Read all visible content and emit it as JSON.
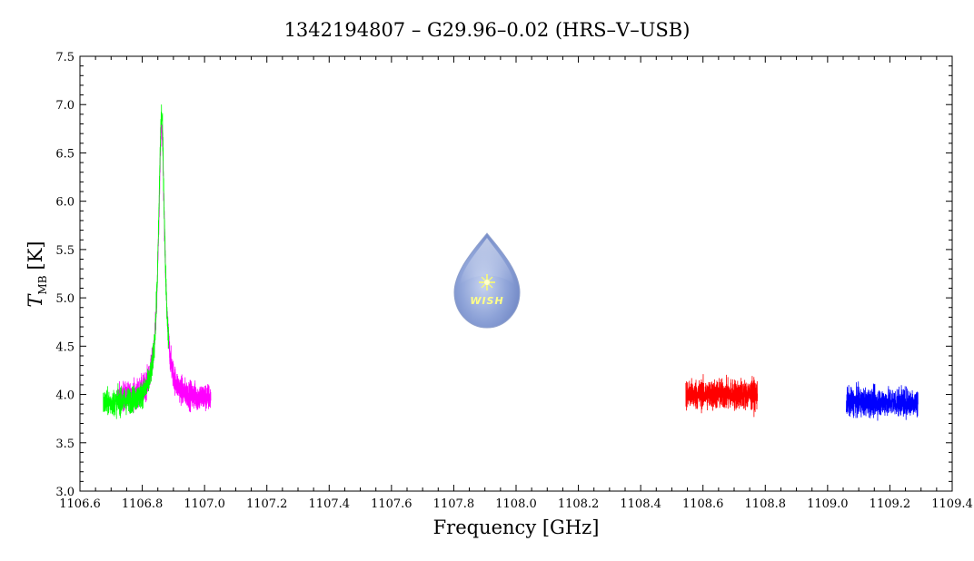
{
  "chart_data": {
    "type": "line",
    "title": "1342194807 – G29.96–0.02 (HRS–V–USB)",
    "xlabel": "Frequency [GHz]",
    "ylabel_main": "T",
    "ylabel_sub": "MB",
    "ylabel_unit": "[K]",
    "xlim": [
      1106.6,
      1109.4
    ],
    "ylim": [
      3.0,
      7.5
    ],
    "x_ticks": [
      "1106.6",
      "1106.8",
      "1107.0",
      "1107.2",
      "1107.4",
      "1107.6",
      "1107.8",
      "1108.0",
      "1108.2",
      "1108.4",
      "1108.6",
      "1108.8",
      "1109.0",
      "1109.2",
      "1109.4"
    ],
    "y_ticks": [
      "3.0",
      "3.5",
      "4.0",
      "4.5",
      "5.0",
      "5.5",
      "6.0",
      "6.5",
      "7.0",
      "7.5"
    ],
    "grid": false,
    "series": [
      {
        "color": "#ff00ff",
        "x_range": [
          1106.72,
          1107.02
        ],
        "baseline": 3.95,
        "noise": 0.13,
        "peak_x": 1106.862,
        "peak_height": 2.8,
        "peak_width": 0.012
      },
      {
        "color": "#00ff00",
        "x_range": [
          1106.675,
          1106.885
        ],
        "baseline": 3.9,
        "noise": 0.12,
        "peak_x": 1106.862,
        "peak_height": 3.0,
        "peak_width": 0.012
      },
      {
        "color": "#ff0000",
        "x_range": [
          1108.545,
          1108.775
        ],
        "baseline": 4.0,
        "noise": 0.14,
        "peak_x": null,
        "peak_height": 0,
        "peak_width": 0
      },
      {
        "color": "#0000ff",
        "x_range": [
          1109.06,
          1109.29
        ],
        "baseline": 3.92,
        "noise": 0.13,
        "peak_x": null,
        "peak_height": 0,
        "peak_width": 0
      }
    ]
  },
  "logo": {
    "text": "WISH"
  }
}
